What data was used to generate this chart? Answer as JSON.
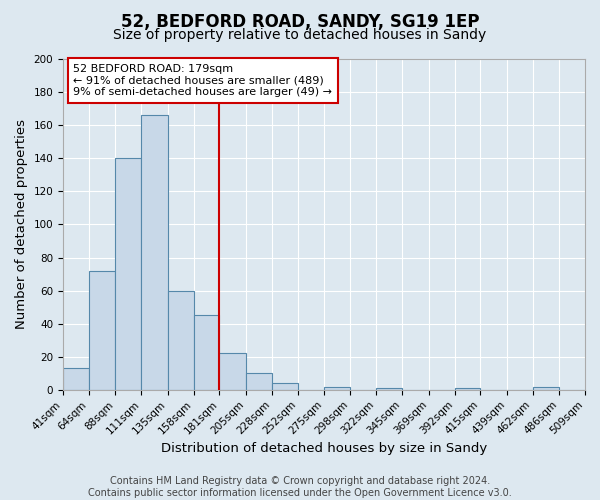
{
  "title": "52, BEDFORD ROAD, SANDY, SG19 1EP",
  "subtitle": "Size of property relative to detached houses in Sandy",
  "xlabel": "Distribution of detached houses by size in Sandy",
  "ylabel": "Number of detached properties",
  "bin_labels": [
    "41sqm",
    "64sqm",
    "88sqm",
    "111sqm",
    "135sqm",
    "158sqm",
    "181sqm",
    "205sqm",
    "228sqm",
    "252sqm",
    "275sqm",
    "298sqm",
    "322sqm",
    "345sqm",
    "369sqm",
    "392sqm",
    "415sqm",
    "439sqm",
    "462sqm",
    "486sqm",
    "509sqm"
  ],
  "bar_heights": [
    13,
    72,
    140,
    166,
    60,
    45,
    22,
    10,
    4,
    0,
    2,
    0,
    1,
    0,
    0,
    1,
    0,
    0,
    2,
    0
  ],
  "bin_edges": [
    41,
    64,
    88,
    111,
    135,
    158,
    181,
    205,
    228,
    252,
    275,
    298,
    322,
    345,
    369,
    392,
    415,
    439,
    462,
    486,
    509
  ],
  "bar_color": "#c8d8e8",
  "bar_edge_color": "#5588aa",
  "vline_x": 181,
  "vline_color": "#cc0000",
  "ylim": [
    0,
    200
  ],
  "yticks": [
    0,
    20,
    40,
    60,
    80,
    100,
    120,
    140,
    160,
    180,
    200
  ],
  "annotation_box_text": [
    "52 BEDFORD ROAD: 179sqm",
    "← 91% of detached houses are smaller (489)",
    "9% of semi-detached houses are larger (49) →"
  ],
  "annotation_box_color": "#ffffff",
  "annotation_box_edge_color": "#cc0000",
  "footer_line1": "Contains HM Land Registry data © Crown copyright and database right 2024.",
  "footer_line2": "Contains public sector information licensed under the Open Government Licence v3.0.",
  "background_color": "#dde8f0",
  "plot_bg_color": "#dde8f0",
  "grid_color": "#ffffff",
  "title_fontsize": 12,
  "subtitle_fontsize": 10,
  "label_fontsize": 9.5,
  "tick_fontsize": 7.5,
  "footer_fontsize": 7
}
